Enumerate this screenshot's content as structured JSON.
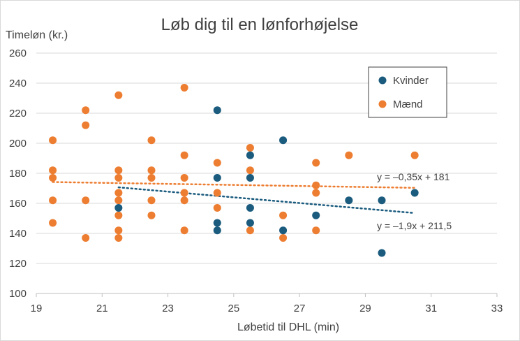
{
  "chart_data": {
    "type": "scatter",
    "title": "Løb dig til en lønforhøjelse",
    "xlabel": "Løbetid til DHL (min)",
    "ylabel": "Timeløn (kr.)",
    "xlim": [
      19,
      33
    ],
    "ylim": [
      100,
      260
    ],
    "xticks": [
      19,
      21,
      23,
      25,
      27,
      29,
      31,
      33
    ],
    "yticks": [
      100,
      120,
      140,
      160,
      180,
      200,
      220,
      240,
      260
    ],
    "grid": "horizontal",
    "legend_position": "top-right",
    "series": [
      {
        "name": "Kvinder",
        "color": "#1a5b7e",
        "points": [
          [
            21.5,
            157
          ],
          [
            24.5,
            222
          ],
          [
            24.5,
            177
          ],
          [
            24.5,
            147
          ],
          [
            24.5,
            142
          ],
          [
            25.5,
            192
          ],
          [
            25.5,
            177
          ],
          [
            25.5,
            157
          ],
          [
            25.5,
            147
          ],
          [
            26.5,
            202
          ],
          [
            26.5,
            142
          ],
          [
            27.5,
            152
          ],
          [
            28.5,
            162
          ],
          [
            29.5,
            162
          ],
          [
            29.5,
            127
          ],
          [
            30.5,
            167
          ]
        ],
        "trendline": {
          "slope": -1.9,
          "intercept": 211.5,
          "x_range": [
            21.5,
            30.5
          ],
          "equation": "y = –1,9x + 211,5"
        }
      },
      {
        "name": "Mænd",
        "color": "#ed7d31",
        "points": [
          [
            19.5,
            202
          ],
          [
            19.5,
            182
          ],
          [
            19.5,
            177
          ],
          [
            19.5,
            162
          ],
          [
            19.5,
            147
          ],
          [
            20.5,
            222
          ],
          [
            20.5,
            212
          ],
          [
            20.5,
            162
          ],
          [
            20.5,
            137
          ],
          [
            21.5,
            232
          ],
          [
            21.5,
            182
          ],
          [
            21.5,
            177
          ],
          [
            21.5,
            167
          ],
          [
            21.5,
            162
          ],
          [
            21.5,
            152
          ],
          [
            21.5,
            142
          ],
          [
            21.5,
            137
          ],
          [
            22.5,
            202
          ],
          [
            22.5,
            182
          ],
          [
            22.5,
            177
          ],
          [
            22.5,
            162
          ],
          [
            22.5,
            152
          ],
          [
            23.5,
            237
          ],
          [
            23.5,
            192
          ],
          [
            23.5,
            177
          ],
          [
            23.5,
            167
          ],
          [
            23.5,
            162
          ],
          [
            23.5,
            142
          ],
          [
            24.5,
            187
          ],
          [
            24.5,
            167
          ],
          [
            24.5,
            157
          ],
          [
            25.5,
            197
          ],
          [
            25.5,
            182
          ],
          [
            25.5,
            142
          ],
          [
            26.5,
            152
          ],
          [
            26.5,
            137
          ],
          [
            27.5,
            187
          ],
          [
            27.5,
            172
          ],
          [
            27.5,
            167
          ],
          [
            27.5,
            142
          ],
          [
            28.5,
            192
          ],
          [
            30.5,
            192
          ]
        ],
        "trendline": {
          "slope": -0.35,
          "intercept": 181,
          "x_range": [
            19.5,
            30.5
          ],
          "equation": "y = –0,35x + 181"
        }
      }
    ]
  }
}
